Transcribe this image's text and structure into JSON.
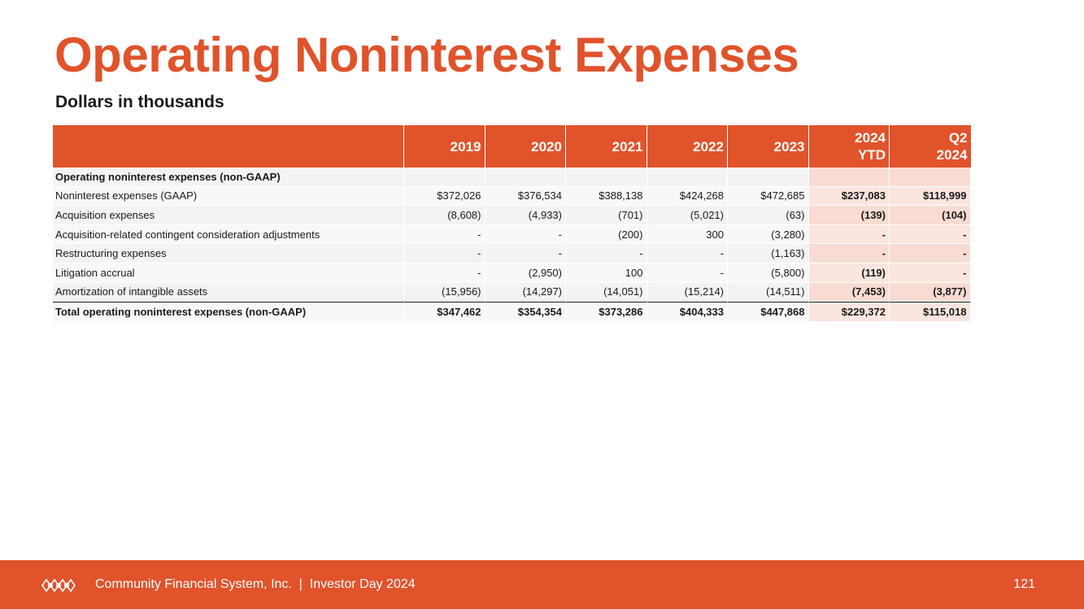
{
  "title": "Operating Noninterest Expenses",
  "subtitle": "Dollars in thousands",
  "table": {
    "header_label": "",
    "columns": [
      "2019",
      "2020",
      "2021",
      "2022",
      "2023",
      "2024\nYTD",
      "Q2\n2024"
    ],
    "rows": [
      {
        "label": "Operating noninterest expenses (non-GAAP)",
        "type": "section",
        "values": [
          "",
          "",
          "",
          "",
          "",
          "",
          ""
        ]
      },
      {
        "label": "Noninterest expenses (GAAP)",
        "type": "normal",
        "values": [
          "$372,026",
          "$376,534",
          "$388,138",
          "$424,268",
          "$472,685",
          "$237,083",
          "$118,999"
        ]
      },
      {
        "label": "Acquisition expenses",
        "type": "normal",
        "values": [
          "(8,608)",
          "(4,933)",
          "(701)",
          "(5,021)",
          "(63)",
          "(139)",
          "(104)"
        ]
      },
      {
        "label": "Acquisition-related contingent consideration adjustments",
        "type": "normal",
        "values": [
          "-",
          "-",
          "(200)",
          "300",
          "(3,280)",
          "-",
          "-"
        ]
      },
      {
        "label": "Restructuring expenses",
        "type": "normal",
        "values": [
          "-",
          "-",
          "-",
          "-",
          "(1,163)",
          "-",
          "-"
        ]
      },
      {
        "label": "Litigation accrual",
        "type": "normal",
        "values": [
          "-",
          "(2,950)",
          "100",
          "-",
          "(5,800)",
          "(119)",
          "-"
        ]
      },
      {
        "label": "Amortization of intangible assets",
        "type": "normal",
        "values": [
          "(15,956)",
          "(14,297)",
          "(14,051)",
          "(15,214)",
          "(14,511)",
          "(7,453)",
          "(3,877)"
        ]
      },
      {
        "label": "Total operating noninterest expenses (non-GAAP)",
        "type": "total",
        "values": [
          "$347,462",
          "$354,354",
          "$373,286",
          "$404,333",
          "$447,868",
          "$229,372",
          "$115,018"
        ]
      }
    ]
  },
  "footer": {
    "company": "Community Financial System, Inc.  |  Investor Day 2024",
    "page_number": "121",
    "logo_icon": "cfsi-knot-logo-icon"
  },
  "colors": {
    "accent": "#e0532b",
    "highlight_col": "#f8dcd4",
    "row_bg": "#f3f3f3"
  }
}
